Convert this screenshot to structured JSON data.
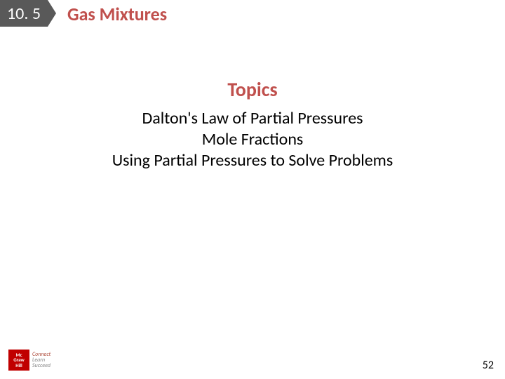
{
  "section": {
    "number": "10. 5",
    "title": "Gas Mixtures",
    "number_bg": "#595959",
    "number_fg": "#ffffff",
    "title_color": "#c0504d"
  },
  "topics": {
    "heading": "Topics",
    "heading_color": "#c0504d",
    "items": [
      "Dalton's Law of Partial Pressures",
      "Mole Fractions",
      "Using Partial Pressures to Solve Problems"
    ],
    "item_color": "#000000"
  },
  "logo": {
    "line1": "Mc",
    "line2": "Graw",
    "line3": "Hill",
    "tag1": "Connect",
    "tag2": "Learn",
    "tag3": "Succeed"
  },
  "page_number": "52"
}
